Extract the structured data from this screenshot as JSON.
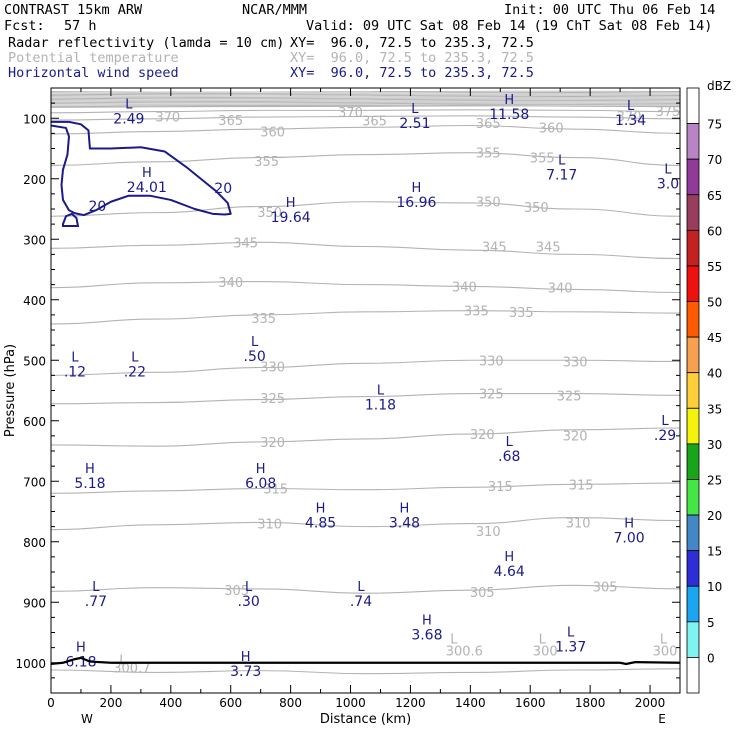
{
  "header": {
    "model": "CONTRAST 15km ARW",
    "center": "NCAR/MMM",
    "init": "Init: 00 UTC Thu 06 Feb 14",
    "fcst_label": "Fcst:",
    "fcst_value": "57 h",
    "valid": "Valid: 09 UTC Sat 08 Feb 14 (19 ChT Sat 08 Feb 14)",
    "fields": [
      {
        "name": "Radar reflectivity (lamda = 10 cm)",
        "xy": "XY=  96.0, 72.5 to 235.3, 72.5"
      },
      {
        "name": "Potential temperature",
        "xy": "XY=  96.0, 72.5 to 235.3, 72.5"
      },
      {
        "name": "Horizontal wind speed",
        "xy": "XY=  96.0, 72.5 to 235.3, 72.5"
      }
    ]
  },
  "colors": {
    "theta": "#b3b3b3",
    "wind": "#1a1a8c",
    "terrain": "#000000"
  },
  "chart_data": {
    "type": "cross-section contour",
    "xlabel": "Distance (km)",
    "ylabel": "Pressure (hPa)",
    "xlim": [
      0,
      2100
    ],
    "ylim": [
      1050,
      50
    ],
    "xticks": [
      0,
      200,
      400,
      600,
      800,
      1000,
      1200,
      1400,
      1600,
      1800,
      2000
    ],
    "yticks": [
      100,
      200,
      300,
      400,
      500,
      600,
      700,
      800,
      900,
      1000
    ],
    "x_end_labels": [
      "W",
      "E"
    ],
    "theta_contour_x": [
      0,
      350,
      700,
      1050,
      1400,
      1750,
      2100
    ],
    "theta_contours": [
      {
        "level": 300,
        "p": [
          1012,
          1016,
          1013,
          1018,
          1016,
          1012,
          1010
        ]
      },
      {
        "level": 305,
        "p": [
          882,
          876,
          878,
          885,
          880,
          872,
          878
        ]
      },
      {
        "level": 310,
        "p": [
          780,
          772,
          768,
          775,
          770,
          760,
          765
        ]
      },
      {
        "level": 315,
        "p": [
          720,
          716,
          712,
          714,
          710,
          705,
          703
        ]
      },
      {
        "level": 320,
        "p": [
          640,
          642,
          635,
          630,
          622,
          615,
          612
        ]
      },
      {
        "level": 325,
        "p": [
          572,
          570,
          565,
          560,
          555,
          555,
          558
        ]
      },
      {
        "level": 330,
        "p": [
          525,
          520,
          512,
          505,
          500,
          500,
          502
        ]
      },
      {
        "level": 335,
        "p": [
          440,
          432,
          425,
          420,
          418,
          420,
          422
        ]
      },
      {
        "level": 340,
        "p": [
          380,
          372,
          370,
          375,
          378,
          383,
          388
        ]
      },
      {
        "level": 345,
        "p": [
          315,
          310,
          305,
          312,
          318,
          325,
          332
        ]
      },
      {
        "level": 350,
        "p": [
          262,
          256,
          246,
          238,
          240,
          250,
          262
        ]
      },
      {
        "level": 355,
        "p": [
          178,
          172,
          165,
          160,
          157,
          165,
          178
        ]
      },
      {
        "level": 360,
        "p": [
          126,
          122,
          118,
          115,
          112,
          118,
          125
        ]
      },
      {
        "level": 365,
        "p": [
          103,
          101,
          98,
          97,
          96,
          98,
          101
        ]
      },
      {
        "level": 370,
        "p": [
          91,
          89,
          87,
          87,
          86,
          87,
          89
        ]
      },
      {
        "level": 375,
        "p": [
          82,
          81,
          80,
          80,
          79,
          80,
          81
        ]
      }
    ],
    "theta_labels": [
      {
        "text": "370",
        "x": 390,
        "p": 97
      },
      {
        "text": "365",
        "x": 600,
        "p": 103
      },
      {
        "text": "370",
        "x": 1000,
        "p": 90
      },
      {
        "text": "365",
        "x": 1080,
        "p": 104
      },
      {
        "text": "365",
        "x": 1460,
        "p": 108
      },
      {
        "text": "360",
        "x": 1670,
        "p": 115
      },
      {
        "text": "370",
        "x": 1930,
        "p": 96
      },
      {
        "text": "375",
        "x": 2060,
        "p": 88
      },
      {
        "text": "360",
        "x": 740,
        "p": 122
      },
      {
        "text": "355",
        "x": 720,
        "p": 171
      },
      {
        "text": "355",
        "x": 1460,
        "p": 157
      },
      {
        "text": "355",
        "x": 1640,
        "p": 165
      },
      {
        "text": "350",
        "x": 1460,
        "p": 238
      },
      {
        "text": "350",
        "x": 1620,
        "p": 247
      },
      {
        "text": "350",
        "x": 730,
        "p": 255
      },
      {
        "text": "345",
        "x": 650,
        "p": 305
      },
      {
        "text": "345",
        "x": 1480,
        "p": 312
      },
      {
        "text": "345",
        "x": 1660,
        "p": 312
      },
      {
        "text": "340",
        "x": 600,
        "p": 371
      },
      {
        "text": "340",
        "x": 1380,
        "p": 378
      },
      {
        "text": "340",
        "x": 1700,
        "p": 380
      },
      {
        "text": "335",
        "x": 710,
        "p": 430
      },
      {
        "text": "335",
        "x": 1420,
        "p": 418
      },
      {
        "text": "335",
        "x": 1570,
        "p": 420
      },
      {
        "text": "330",
        "x": 740,
        "p": 510
      },
      {
        "text": "330",
        "x": 1470,
        "p": 500
      },
      {
        "text": "330",
        "x": 1750,
        "p": 502
      },
      {
        "text": "325",
        "x": 740,
        "p": 562
      },
      {
        "text": "325",
        "x": 1470,
        "p": 555
      },
      {
        "text": "325",
        "x": 1730,
        "p": 558
      },
      {
        "text": "320",
        "x": 740,
        "p": 635
      },
      {
        "text": "320",
        "x": 1440,
        "p": 622
      },
      {
        "text": "320",
        "x": 1750,
        "p": 624
      },
      {
        "text": "315",
        "x": 750,
        "p": 712
      },
      {
        "text": "315",
        "x": 1500,
        "p": 708
      },
      {
        "text": "315",
        "x": 1770,
        "p": 705
      },
      {
        "text": "310",
        "x": 730,
        "p": 770
      },
      {
        "text": "310",
        "x": 1460,
        "p": 782
      },
      {
        "text": "310",
        "x": 1760,
        "p": 768
      },
      {
        "text": "305",
        "x": 620,
        "p": 880
      },
      {
        "text": "305",
        "x": 1440,
        "p": 883
      },
      {
        "text": "305",
        "x": 1850,
        "p": 874
      },
      {
        "text": "L",
        "x": 240,
        "p": 995
      },
      {
        "text": "300.7",
        "x": 270,
        "p": 1008
      },
      {
        "text": "L",
        "x": 1345,
        "p": 960
      },
      {
        "text": "300.6",
        "x": 1380,
        "p": 980
      },
      {
        "text": "L",
        "x": 1640,
        "p": 960
      },
      {
        "text": "300",
        "x": 1650,
        "p": 980
      },
      {
        "text": "L",
        "x": 2045,
        "p": 960
      },
      {
        "text": "300",
        "x": 2050,
        "p": 980
      }
    ],
    "wind_contour_20": [
      [
        0,
        112
      ],
      [
        50,
        116
      ],
      [
        60,
        130
      ],
      [
        55,
        160
      ],
      [
        40,
        185
      ],
      [
        35,
        210
      ],
      [
        40,
        235
      ],
      [
        60,
        252
      ],
      [
        80,
        257
      ],
      [
        110,
        260
      ],
      [
        150,
        252
      ],
      [
        200,
        238
      ],
      [
        260,
        228
      ],
      [
        330,
        228
      ],
      [
        400,
        235
      ],
      [
        480,
        250
      ],
      [
        540,
        258
      ],
      [
        580,
        259
      ],
      [
        600,
        258
      ],
      [
        590,
        240
      ],
      [
        550,
        220
      ],
      [
        500,
        200
      ],
      [
        450,
        180
      ],
      [
        380,
        155
      ],
      [
        300,
        148
      ],
      [
        200,
        150
      ],
      [
        130,
        150
      ],
      [
        125,
        120
      ],
      [
        100,
        110
      ],
      [
        60,
        106
      ],
      [
        0,
        106
      ]
    ],
    "wind_contour_20_small": [
      [
        40,
        275
      ],
      [
        50,
        262
      ],
      [
        70,
        258
      ],
      [
        85,
        265
      ],
      [
        90,
        278
      ],
      [
        40,
        278
      ]
    ],
    "wind_contour_labels": [
      {
        "text": "20",
        "x": 155,
        "p": 245
      },
      {
        "text": "20",
        "x": 575,
        "p": 215
      }
    ],
    "wind_extrema": [
      {
        "type": "L",
        "value": "2.49",
        "x": 260,
        "p": 87
      },
      {
        "type": "L",
        "value": "2.51",
        "x": 1215,
        "p": 95
      },
      {
        "type": "H",
        "value": "11.58",
        "x": 1530,
        "p": 80
      },
      {
        "type": "L",
        "value": "1.34",
        "x": 1935,
        "p": 90
      },
      {
        "type": "L",
        "value": "7.17",
        "x": 1705,
        "p": 180
      },
      {
        "type": "L",
        "value": "3.0",
        "x": 2060,
        "p": 195
      },
      {
        "type": "H",
        "value": "24.01",
        "x": 320,
        "p": 200
      },
      {
        "type": "H",
        "value": "16.96",
        "x": 1220,
        "p": 225
      },
      {
        "type": "H",
        "value": "19.64",
        "x": 800,
        "p": 250
      },
      {
        "type": "L",
        "value": ".50",
        "x": 680,
        "p": 480
      },
      {
        "type": "L",
        "value": ".12",
        "x": 80,
        "p": 505
      },
      {
        "type": "L",
        "value": ".22",
        "x": 280,
        "p": 505
      },
      {
        "type": "L",
        "value": "1.18",
        "x": 1100,
        "p": 560
      },
      {
        "type": "L",
        "value": ".29",
        "x": 2050,
        "p": 610
      },
      {
        "type": "L",
        "value": ".68",
        "x": 1530,
        "p": 645
      },
      {
        "type": "H",
        "value": "5.18",
        "x": 130,
        "p": 690
      },
      {
        "type": "H",
        "value": "6.08",
        "x": 700,
        "p": 690
      },
      {
        "type": "H",
        "value": "4.85",
        "x": 900,
        "p": 755
      },
      {
        "type": "H",
        "value": "3.48",
        "x": 1180,
        "p": 755
      },
      {
        "type": "H",
        "value": "7.00",
        "x": 1930,
        "p": 780
      },
      {
        "type": "H",
        "value": "4.64",
        "x": 1530,
        "p": 835
      },
      {
        "type": "L",
        "value": ".77",
        "x": 150,
        "p": 885
      },
      {
        "type": "L",
        "value": ".30",
        "x": 660,
        "p": 885
      },
      {
        "type": "L",
        "value": ".74",
        "x": 1035,
        "p": 885
      },
      {
        "type": "H",
        "value": "3.68",
        "x": 1255,
        "p": 940
      },
      {
        "type": "L",
        "value": "1.37",
        "x": 1735,
        "p": 960
      },
      {
        "type": "H",
        "value": "6.18",
        "x": 100,
        "p": 985
      },
      {
        "type": "H",
        "value": "3.73",
        "x": 650,
        "p": 1000
      }
    ],
    "terrain": [
      [
        0,
        1002
      ],
      [
        40,
        1000
      ],
      [
        80,
        994
      ],
      [
        100,
        992
      ],
      [
        130,
        998
      ],
      [
        200,
        1000
      ],
      [
        400,
        1000
      ],
      [
        700,
        1000
      ],
      [
        1000,
        1000
      ],
      [
        1400,
        1000
      ],
      [
        1800,
        1000
      ],
      [
        1900,
        1000
      ],
      [
        1920,
        1002
      ],
      [
        1950,
        999
      ],
      [
        2100,
        1000
      ]
    ],
    "colorbar": {
      "unit": "dBZ",
      "levels": [
        "75",
        "70",
        "65",
        "60",
        "55",
        "50",
        "45",
        "40",
        "35",
        "30",
        "25",
        "20",
        "15",
        "10",
        "5",
        "0"
      ],
      "colors": [
        "#ffffff",
        "#b884c6",
        "#903a9a",
        "#993d5e",
        "#c42121",
        "#ef1010",
        "#ff5a00",
        "#f7a050",
        "#ffcf3a",
        "#f5f20c",
        "#19a519",
        "#45e545",
        "#4487c7",
        "#2e2ed6",
        "#1aa6f2",
        "#7ff2f2",
        "#ffffff"
      ]
    }
  }
}
